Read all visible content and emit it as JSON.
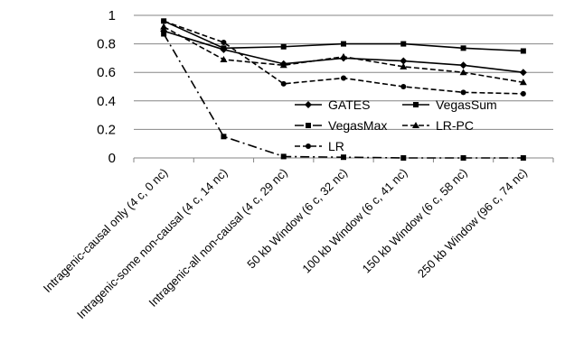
{
  "chart_data": {
    "type": "line",
    "categories": [
      "Intragenic-causal only  (4 c, 0 nc)",
      "Intragenic-some non-causal  (4 c, 14 nc)",
      "Intragenic-all non-causal  (4 c, 29 nc)",
      "50 kb Window (6 c, 32 nc)",
      "100 kb Window (6 c, 41 nc)",
      "150 kb Window (6 c, 58 nc)",
      "250 kb Window (96 c, 74 nc)"
    ],
    "ylim": [
      0,
      1
    ],
    "yticks": [
      "0",
      "0.2",
      "0.4",
      "0.6",
      "0.8",
      "1"
    ],
    "grid": "horizontal",
    "legend": "inside-right",
    "series": [
      {
        "name": "GATES",
        "marker": "diamond",
        "dash": "solid",
        "values": [
          0.89,
          0.76,
          0.66,
          0.7,
          0.68,
          0.65,
          0.6
        ]
      },
      {
        "name": "VegasSum",
        "marker": "square",
        "dash": "solid",
        "values": [
          0.96,
          0.77,
          0.78,
          0.8,
          0.8,
          0.77,
          0.75
        ]
      },
      {
        "name": "VegasMax",
        "marker": "square",
        "dash": "dashdot",
        "values": [
          0.87,
          0.15,
          0.01,
          0.005,
          0.0,
          0.0,
          0.0
        ]
      },
      {
        "name": "LR-PC",
        "marker": "triangle",
        "dash": "dashed",
        "values": [
          0.92,
          0.69,
          0.65,
          0.71,
          0.64,
          0.6,
          0.53
        ]
      },
      {
        "name": "LR",
        "marker": "circle",
        "dash": "dashed",
        "values": [
          0.96,
          0.81,
          0.52,
          0.56,
          0.5,
          0.46,
          0.45
        ]
      }
    ]
  }
}
